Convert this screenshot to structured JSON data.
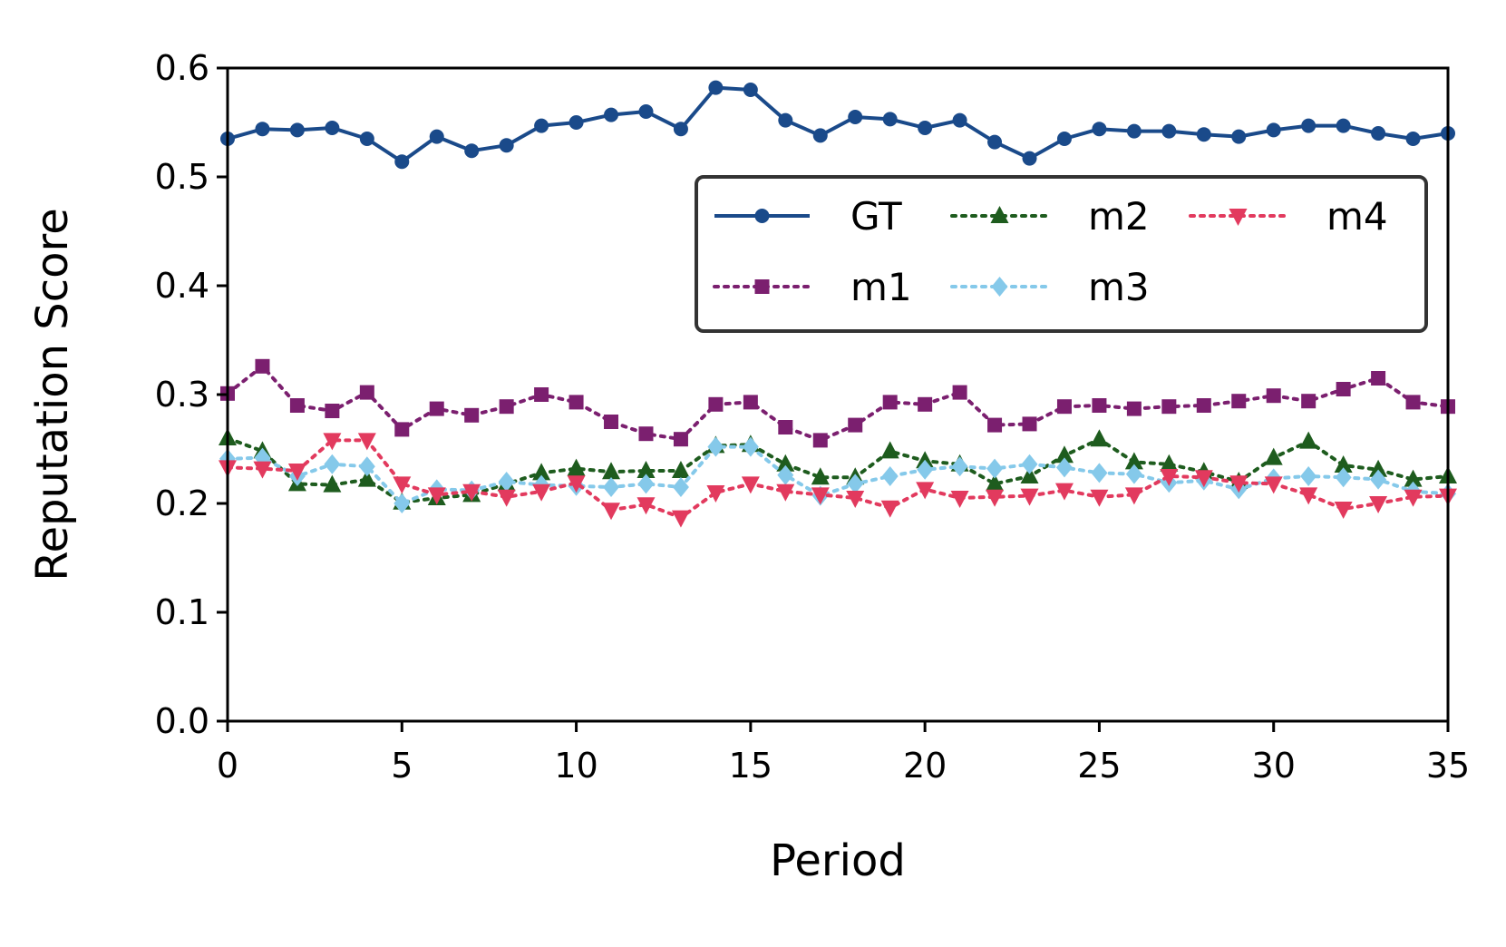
{
  "chart_data": {
    "type": "line",
    "title": "",
    "xlabel": "Period",
    "ylabel": "Reputation Score",
    "xlim": [
      0,
      35
    ],
    "ylim": [
      0.0,
      0.6
    ],
    "xticks": [
      0,
      5,
      10,
      15,
      20,
      25,
      30,
      35
    ],
    "xtick_labels": [
      "0",
      "5",
      "10",
      "15",
      "20",
      "25",
      "30",
      "35"
    ],
    "yticks": [
      0.0,
      0.1,
      0.2,
      0.3,
      0.4,
      0.5,
      0.6
    ],
    "ytick_labels": [
      "0.0",
      "0.1",
      "0.2",
      "0.3",
      "0.4",
      "0.5",
      "0.6"
    ],
    "grid": false,
    "legend_position": "upper-right",
    "x": [
      0,
      1,
      2,
      3,
      4,
      5,
      6,
      7,
      8,
      9,
      10,
      11,
      12,
      13,
      14,
      15,
      16,
      17,
      18,
      19,
      20,
      21,
      22,
      23,
      24,
      25,
      26,
      27,
      28,
      29,
      30,
      31,
      32,
      33,
      34,
      35
    ],
    "series": [
      {
        "name": "GT",
        "color": "#1a4a8a",
        "linestyle": "solid",
        "marker": "circle",
        "values": [
          0.535,
          0.544,
          0.543,
          0.545,
          0.535,
          0.514,
          0.537,
          0.524,
          0.529,
          0.547,
          0.55,
          0.557,
          0.56,
          0.544,
          0.582,
          0.58,
          0.552,
          0.538,
          0.555,
          0.553,
          0.545,
          0.552,
          0.532,
          0.517,
          0.535,
          0.544,
          0.542,
          0.542,
          0.539,
          0.537,
          0.543,
          0.547,
          0.547,
          0.54,
          0.535,
          0.54
        ]
      },
      {
        "name": "m1",
        "color": "#7b1f6f",
        "linestyle": "dotted",
        "marker": "square",
        "values": [
          0.301,
          0.326,
          0.29,
          0.285,
          0.302,
          0.268,
          0.287,
          0.281,
          0.289,
          0.3,
          0.293,
          0.275,
          0.264,
          0.259,
          0.291,
          0.293,
          0.27,
          0.258,
          0.272,
          0.293,
          0.291,
          0.302,
          0.272,
          0.273,
          0.289,
          0.29,
          0.287,
          0.289,
          0.29,
          0.294,
          0.299,
          0.294,
          0.305,
          0.315,
          0.293,
          0.289
        ]
      },
      {
        "name": "m2",
        "color": "#1e5c1e",
        "linestyle": "dotted",
        "marker": "triangle-up",
        "values": [
          0.26,
          0.248,
          0.218,
          0.217,
          0.222,
          0.201,
          0.205,
          0.208,
          0.218,
          0.228,
          0.232,
          0.229,
          0.23,
          0.23,
          0.253,
          0.254,
          0.236,
          0.224,
          0.224,
          0.248,
          0.239,
          0.236,
          0.218,
          0.225,
          0.244,
          0.259,
          0.238,
          0.236,
          0.229,
          0.22,
          0.242,
          0.257,
          0.235,
          0.231,
          0.222,
          0.225
        ]
      },
      {
        "name": "m3",
        "color": "#85c9ea",
        "linestyle": "dotted",
        "marker": "diamond",
        "values": [
          0.241,
          0.242,
          0.225,
          0.236,
          0.234,
          0.2,
          0.213,
          0.212,
          0.22,
          0.217,
          0.216,
          0.215,
          0.218,
          0.215,
          0.252,
          0.252,
          0.226,
          0.207,
          0.218,
          0.225,
          0.231,
          0.234,
          0.232,
          0.236,
          0.233,
          0.228,
          0.227,
          0.219,
          0.221,
          0.213,
          0.223,
          0.225,
          0.224,
          0.222,
          0.211,
          0.209
        ]
      },
      {
        "name": "m4",
        "color": "#e23a5e",
        "linestyle": "dotted",
        "marker": "triangle-down",
        "values": [
          0.233,
          0.232,
          0.23,
          0.258,
          0.258,
          0.218,
          0.208,
          0.211,
          0.206,
          0.211,
          0.219,
          0.194,
          0.199,
          0.187,
          0.21,
          0.218,
          0.211,
          0.208,
          0.205,
          0.196,
          0.213,
          0.205,
          0.206,
          0.207,
          0.212,
          0.206,
          0.208,
          0.225,
          0.224,
          0.219,
          0.218,
          0.208,
          0.195,
          0.2,
          0.206,
          0.207
        ]
      }
    ]
  }
}
